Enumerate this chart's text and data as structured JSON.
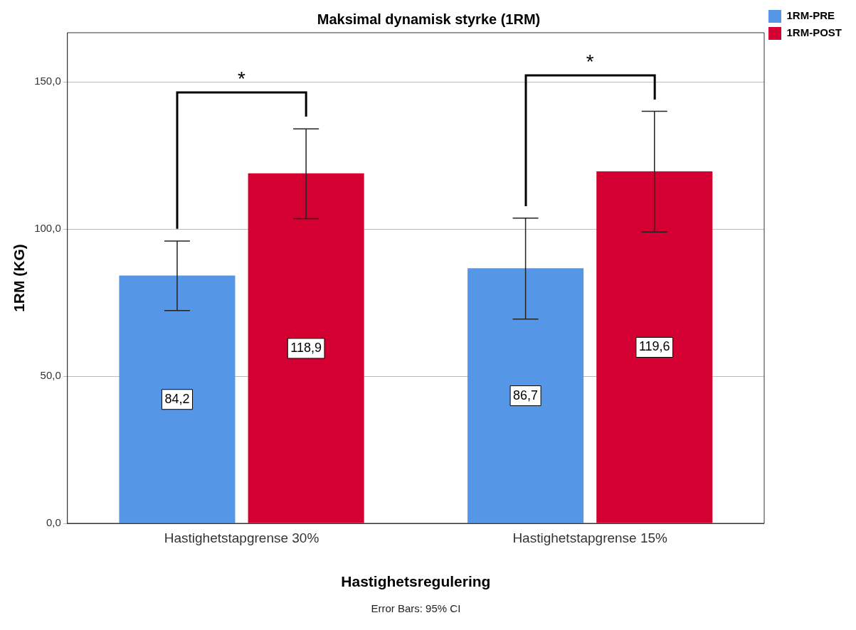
{
  "chart_data": {
    "type": "bar",
    "title": "Maksimal dynamisk styrke (1RM)",
    "xlabel": "Hastighetsregulering",
    "ylabel": "1RM (KG)",
    "categories": [
      "Hastighetstapgrense 30%",
      "Hastighetstapgrense 15%"
    ],
    "series": [
      {
        "name": "1RM-PRE",
        "color": "#5596e6",
        "values": [
          84.2,
          86.7
        ],
        "errors": [
          [
            72.3,
            95.9
          ],
          [
            69.4,
            103.7
          ]
        ],
        "value_labels": [
          "84,2",
          "86,7"
        ]
      },
      {
        "name": "1RM-POST",
        "color": "#d50032",
        "values": [
          118.9,
          119.6
        ],
        "errors": [
          [
            103.5,
            134.0
          ],
          [
            99.0,
            140.0
          ]
        ],
        "value_labels": [
          "118,9",
          "119,6"
        ]
      }
    ],
    "ylim": [
      0,
      166.7
    ],
    "yticks": [
      {
        "value": 0,
        "label": "0,0"
      },
      {
        "value": 50,
        "label": "50,0"
      },
      {
        "value": 100,
        "label": "100,0"
      },
      {
        "value": 150,
        "label": "150,0"
      }
    ],
    "grid": "y",
    "legend": "top right",
    "annotations": [
      "*",
      "*",
      "Error Bars: 95% CI"
    ]
  }
}
